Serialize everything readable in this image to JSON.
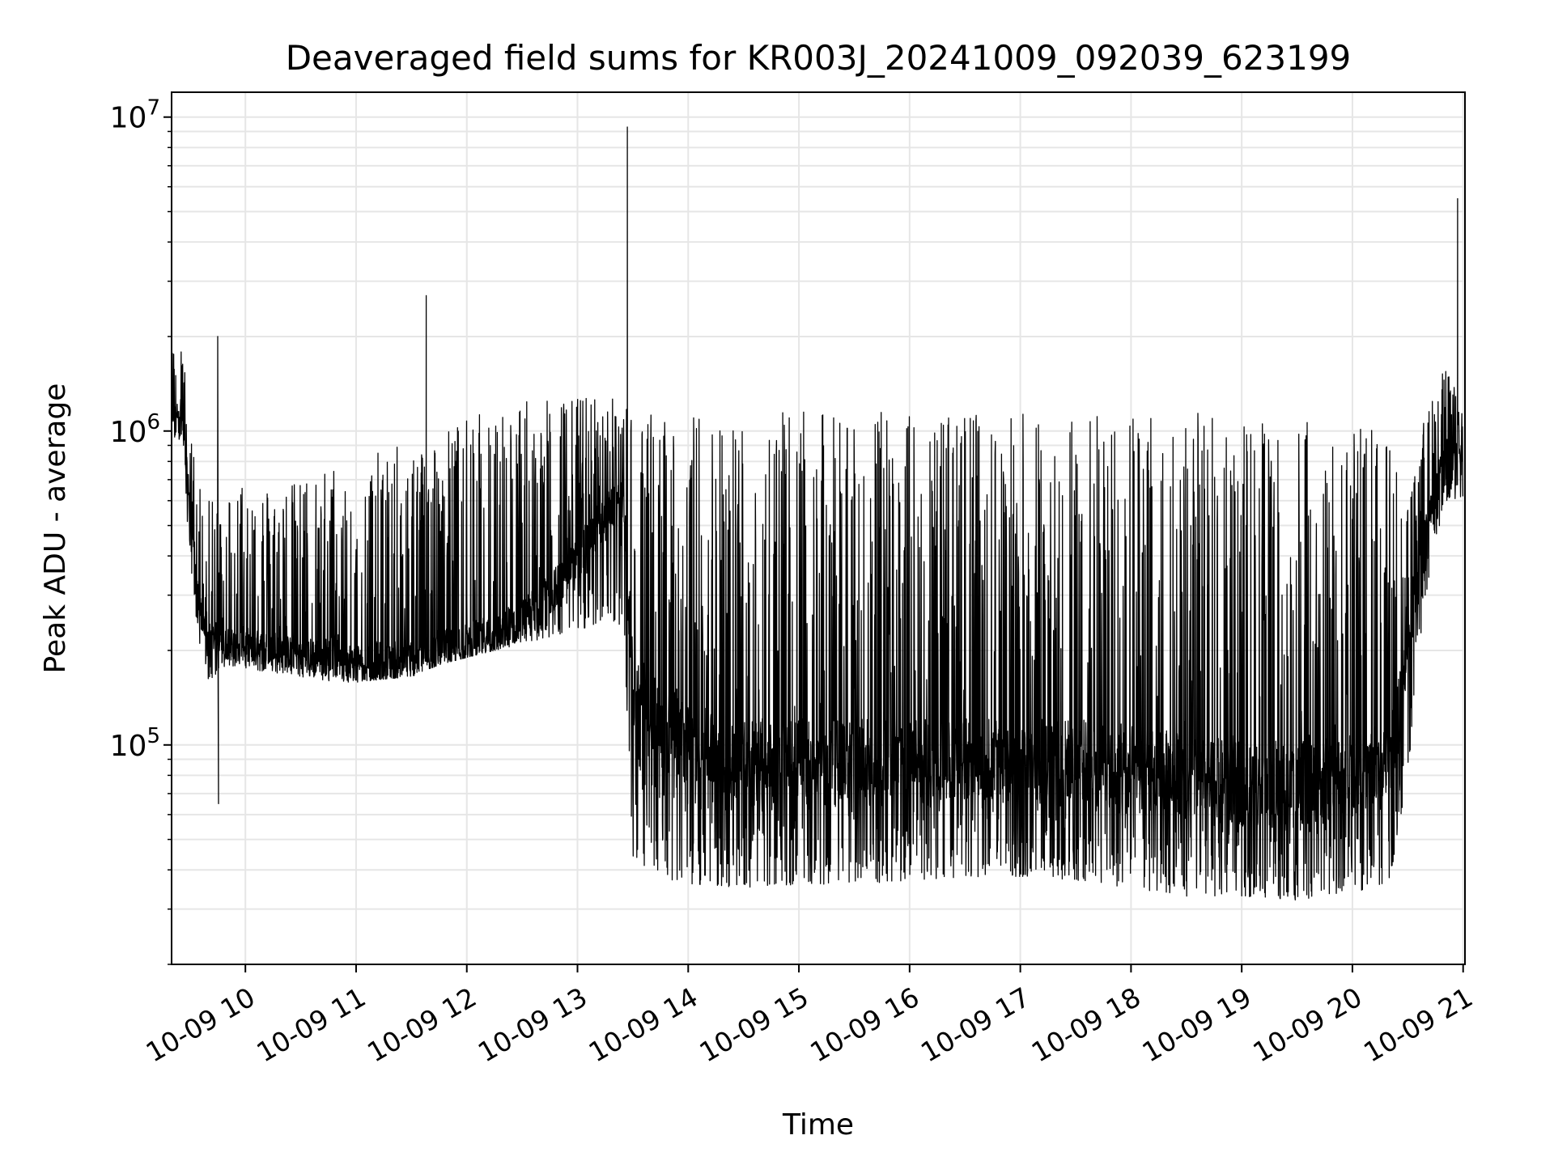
{
  "chart_data": {
    "type": "line",
    "title": "Deaveraged field sums for KR003J_20241009_092039_623199",
    "xlabel": "Time",
    "ylabel": "Peak ADU - average",
    "y_scale": "log",
    "ylim": [
      20000,
      12000000
    ],
    "xlim": [
      "2024-10-09 09:20",
      "2024-10-09 21:01"
    ],
    "grid": true,
    "grid_color": "#e6e6e6",
    "line_color": "#000000",
    "x_tick_labels": [
      "10-09 10",
      "10-09 11",
      "10-09 12",
      "10-09 13",
      "10-09 14",
      "10-09 15",
      "10-09 16",
      "10-09 17",
      "10-09 18",
      "10-09 19",
      "10-09 20",
      "10-09 21"
    ],
    "y_tick_labels": [
      {
        "base": "10",
        "exp": "5"
      },
      {
        "base": "10",
        "exp": "6"
      },
      {
        "base": "10",
        "exp": "7"
      }
    ],
    "series": [
      {
        "x": [
          "2024-10-09 09:20",
          "2024-10-09 09:25",
          "2024-10-09 09:30",
          "2024-10-09 09:35",
          "2024-10-09 09:40",
          "2024-10-09 09:45",
          "2024-10-09 09:50",
          "2024-10-09 10:00",
          "2024-10-09 10:15",
          "2024-10-09 10:30",
          "2024-10-09 10:45",
          "2024-10-09 11:00",
          "2024-10-09 11:15",
          "2024-10-09 11:30",
          "2024-10-09 11:45",
          "2024-10-09 12:00",
          "2024-10-09 12:15",
          "2024-10-09 12:30",
          "2024-10-09 12:45",
          "2024-10-09 13:00",
          "2024-10-09 13:15",
          "2024-10-09 13:25",
          "2024-10-09 13:30",
          "2024-10-09 13:45",
          "2024-10-09 14:00",
          "2024-10-09 14:30",
          "2024-10-09 15:00",
          "2024-10-09 15:30",
          "2024-10-09 16:00",
          "2024-10-09 16:30",
          "2024-10-09 17:00",
          "2024-10-09 17:30",
          "2024-10-09 18:00",
          "2024-10-09 18:30",
          "2024-10-09 19:00",
          "2024-10-09 19:30",
          "2024-10-09 20:00",
          "2024-10-09 20:20",
          "2024-10-09 20:30",
          "2024-10-09 20:40",
          "2024-10-09 20:50",
          "2024-10-09 21:00"
        ],
        "low": [
          900000,
          950000,
          400000,
          200000,
          160000,
          170000,
          180000,
          175000,
          170000,
          165000,
          160000,
          158000,
          162000,
          165000,
          180000,
          190000,
          200000,
          210000,
          220000,
          230000,
          250000,
          240000,
          40000,
          38000,
          36000,
          35000,
          36000,
          36000,
          37000,
          38000,
          38000,
          37000,
          35000,
          33000,
          33000,
          32000,
          34000,
          36000,
          80000,
          300000,
          600000,
          600000
        ],
        "high": [
          1800000,
          2200000,
          1000000,
          700000,
          600000,
          600000,
          650000,
          750000,
          650000,
          700000,
          800000,
          700000,
          900000,
          900000,
          1000000,
          1100000,
          1200000,
          1250000,
          1250000,
          1300000,
          1300000,
          1250000,
          1200000,
          1150000,
          1150000,
          1150000,
          1150000,
          1150000,
          1150000,
          1150000,
          1150000,
          1150000,
          1150000,
          1150000,
          1100000,
          1100000,
          1050000,
          1000000,
          600000,
          1200000,
          1600000,
          1200000
        ],
        "median": [
          1100000,
          1200000,
          600000,
          270000,
          220000,
          220000,
          210000,
          210000,
          200000,
          195000,
          190000,
          185000,
          185000,
          190000,
          200000,
          210000,
          225000,
          250000,
          300000,
          400000,
          550000,
          600000,
          150000,
          120000,
          100000,
          90000,
          90000,
          90000,
          90000,
          90000,
          90000,
          90000,
          85000,
          80000,
          75000,
          75000,
          80000,
          90000,
          200000,
          500000,
          900000,
          850000
        ]
      }
    ],
    "spikes": [
      {
        "x": "2024-10-09 09:45",
        "y": 2000000,
        "low": 65000
      },
      {
        "x": "2024-10-09 11:38",
        "y": 2700000
      },
      {
        "x": "2024-10-09 13:27",
        "y": 9300000
      },
      {
        "x": "2024-10-09 20:57",
        "y": 5500000
      }
    ]
  }
}
